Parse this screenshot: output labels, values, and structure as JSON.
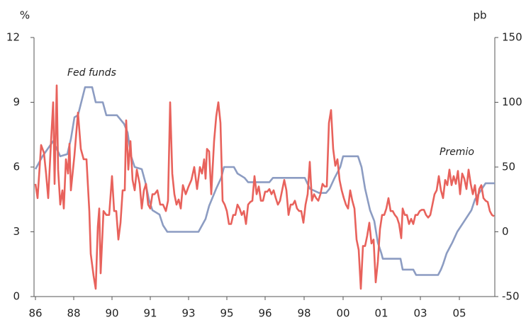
{
  "chart_data": {
    "type": "line",
    "y_label": "%",
    "y2_label": "pb",
    "xlim": [
      0,
      650
    ],
    "xticks": [
      {
        "value": 2,
        "label": "86"
      },
      {
        "value": 56,
        "label": "88"
      },
      {
        "value": 110,
        "label": "90"
      },
      {
        "value": 164,
        "label": "91"
      },
      {
        "value": 218,
        "label": "93"
      },
      {
        "value": 272,
        "label": "95"
      },
      {
        "value": 326,
        "label": "96"
      },
      {
        "value": 381,
        "label": "98"
      },
      {
        "value": 436,
        "label": "00"
      },
      {
        "value": 490,
        "label": "01"
      },
      {
        "value": 545,
        "label": "03"
      },
      {
        "value": 600,
        "label": "05"
      }
    ],
    "ylim": [
      0,
      12
    ],
    "yticks": [
      0,
      3,
      6,
      9,
      12
    ],
    "y2lim": [
      -50,
      150
    ],
    "y2ticks": [
      -50,
      0,
      50,
      100,
      150
    ],
    "series": [
      {
        "name": "Fed funds",
        "color": "#8c9cc2",
        "x": [
          2,
          12,
          27,
          37,
          47,
          52,
          57,
          62,
          72,
          82,
          87,
          97,
          102,
          117,
          127,
          132,
          137,
          142,
          152,
          157,
          162,
          167,
          177,
          182,
          188,
          232,
          242,
          247,
          257,
          264,
          268,
          282,
          287,
          297,
          302,
          332,
          337,
          382,
          389,
          402,
          412,
          417,
          424,
          432,
          436,
          457,
          462,
          467,
          474,
          480,
          485,
          490,
          492,
          517,
          520,
          535,
          539,
          570,
          574,
          577,
          582,
          590,
          597,
          607,
          617,
          622,
          632,
          637,
          650
        ],
        "values": [
          5.9,
          6.5,
          7.2,
          6.5,
          6.6,
          7.3,
          8.3,
          8.4,
          9.7,
          9.7,
          9.0,
          9.0,
          8.4,
          8.4,
          8.0,
          7.6,
          6.5,
          6.0,
          5.9,
          5.3,
          4.5,
          4.0,
          3.8,
          3.3,
          3.0,
          3.0,
          3.6,
          4.2,
          5.0,
          5.5,
          6.0,
          6.0,
          5.7,
          5.5,
          5.3,
          5.3,
          5.5,
          5.5,
          5.0,
          4.8,
          4.8,
          5.0,
          5.5,
          6.0,
          6.5,
          6.5,
          6.0,
          5.0,
          4.0,
          3.5,
          2.5,
          2.0,
          1.75,
          1.75,
          1.25,
          1.25,
          1.0,
          1.0,
          1.25,
          1.5,
          2.0,
          2.5,
          3.0,
          3.5,
          4.0,
          4.5,
          5.0,
          5.25,
          5.25
        ]
      },
      {
        "name": "Premio",
        "color": "#e8625c",
        "axis": "y2",
        "x": [
          2,
          5,
          10,
          14,
          17,
          20,
          24,
          27,
          29,
          32,
          34,
          37,
          40,
          42,
          45,
          48,
          50,
          52,
          57,
          62,
          66,
          70,
          74,
          78,
          80,
          84,
          87,
          90,
          92,
          94,
          98,
          102,
          106,
          110,
          113,
          116,
          119,
          122,
          125,
          128,
          130,
          133,
          136,
          139,
          142,
          145,
          149,
          152,
          155,
          158,
          161,
          164,
          167,
          170,
          174,
          178,
          182,
          186,
          189,
          192,
          195,
          198,
          201,
          204,
          207,
          210,
          214,
          218,
          222,
          226,
          230,
          234,
          237,
          240,
          242,
          244,
          247,
          250,
          254,
          257,
          260,
          263,
          266,
          269,
          272,
          275,
          278,
          281,
          284,
          287,
          290,
          293,
          296,
          299,
          302,
          305,
          308,
          311,
          314,
          317,
          320,
          323,
          326,
          329,
          332,
          335,
          338,
          341,
          344,
          347,
          350,
          353,
          356,
          359,
          362,
          365,
          368,
          371,
          374,
          377,
          380,
          383,
          386,
          389,
          392,
          395,
          398,
          401,
          404,
          407,
          410,
          413,
          416,
          419,
          422,
          425,
          428,
          431,
          434,
          437,
          440,
          443,
          446,
          449,
          452,
          455,
          458,
          461,
          464,
          467,
          470,
          473,
          476,
          479,
          482,
          485,
          488,
          491,
          494,
          497,
          500,
          503,
          506,
          509,
          512,
          515,
          518,
          520,
          523,
          526,
          529,
          532,
          535,
          538,
          541,
          544,
          547,
          550,
          553,
          556,
          559,
          562,
          565,
          568,
          571,
          574,
          577,
          580,
          583,
          586,
          589,
          592,
          595,
          598,
          601,
          604,
          607,
          610,
          613,
          616,
          619,
          622,
          625,
          628,
          631,
          634,
          637,
          640,
          643,
          646,
          649
        ],
        "values": [
          37,
          26,
          67,
          61,
          45,
          26,
          70,
          100,
          37,
          113,
          48,
          21,
          32,
          18,
          56,
          45,
          68,
          32,
          59,
          92,
          64,
          56,
          56,
          16,
          -17,
          -34,
          -44,
          4,
          18,
          -32,
          16,
          13,
          13,
          43,
          16,
          16,
          -6,
          7,
          32,
          32,
          86,
          48,
          70,
          40,
          32,
          48,
          37,
          18,
          32,
          37,
          21,
          18,
          29,
          29,
          32,
          21,
          21,
          16,
          24,
          100,
          45,
          29,
          21,
          25,
          18,
          36,
          29,
          35,
          40,
          50,
          33,
          50,
          45,
          56,
          41,
          64,
          62,
          29,
          70,
          89,
          100,
          84,
          24,
          21,
          16,
          6,
          6,
          13,
          13,
          21,
          18,
          13,
          16,
          6,
          21,
          23,
          24,
          43,
          29,
          35,
          24,
          24,
          31,
          31,
          33,
          29,
          32,
          26,
          21,
          24,
          32,
          40,
          32,
          13,
          21,
          21,
          24,
          18,
          16,
          16,
          7,
          21,
          29,
          54,
          24,
          29,
          26,
          24,
          29,
          37,
          35,
          35,
          84,
          94,
          64,
          51,
          56,
          40,
          32,
          26,
          21,
          18,
          32,
          24,
          18,
          -6,
          -14,
          -44,
          -11,
          -11,
          -3,
          7,
          -9,
          -6,
          -39,
          -23,
          2,
          13,
          13,
          18,
          26,
          16,
          16,
          13,
          11,
          6,
          -5,
          18,
          13,
          13,
          6,
          10,
          6,
          13,
          13,
          16,
          17,
          17,
          13,
          11,
          13,
          21,
          29,
          32,
          43,
          32,
          26,
          40,
          36,
          48,
          36,
          43,
          37,
          47,
          29,
          45,
          41,
          33,
          48,
          37,
          29,
          36,
          21,
          33,
          36,
          26,
          24,
          23,
          16,
          13,
          12
        ]
      }
    ]
  }
}
